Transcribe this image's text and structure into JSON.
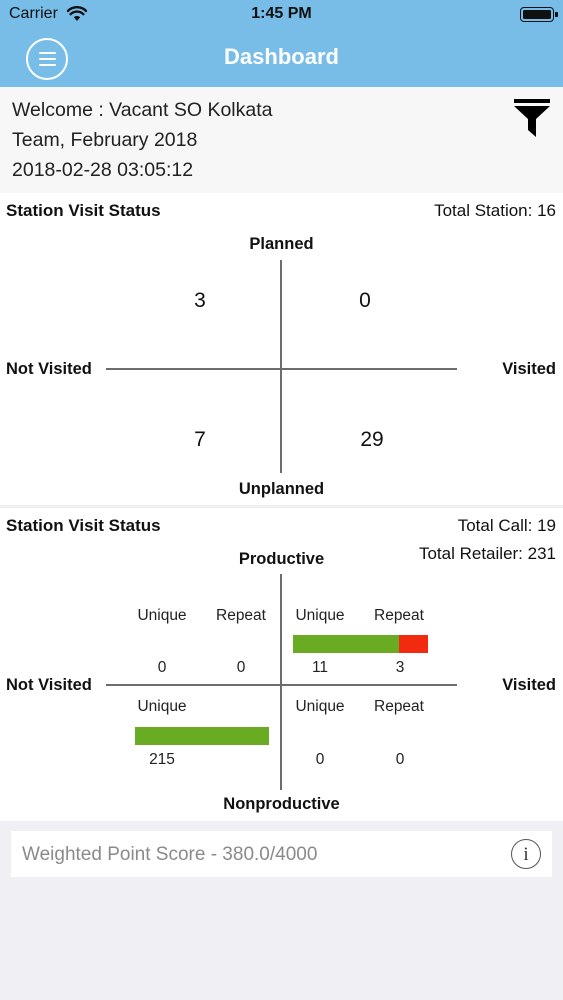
{
  "status_bar": {
    "carrier": "Carrier",
    "time": "1:45 PM"
  },
  "header": {
    "title": "Dashboard"
  },
  "welcome": {
    "line1": "Welcome : Vacant SO Kolkata",
    "line2": "Team, February 2018",
    "line3": "2018-02-28 03:05:12"
  },
  "station_status": {
    "title": "Station Visit Status",
    "total": "Total Station: 16",
    "top_label": "Planned",
    "bottom_label": "Unplanned",
    "left_label": "Not Visited",
    "right_label": "Visited",
    "planned_not_visited": "3",
    "planned_visited": "0",
    "unplanned_not_visited": "7",
    "unplanned_visited": "29"
  },
  "call_status": {
    "title": "Station Visit Status",
    "total_call": "Total Call: 19",
    "total_retailer": "Total Retailer: 231",
    "top_label": "Productive",
    "bottom_label": "Nonproductive",
    "left_label": "Not Visited",
    "right_label": "Visited",
    "productive_not_visited": {
      "unique_label": "Unique",
      "repeat_label": "Repeat",
      "unique": "0",
      "repeat": "0"
    },
    "productive_visited": {
      "unique_label": "Unique",
      "repeat_label": "Repeat",
      "unique": "11",
      "repeat": "3",
      "unique_share": 0.786,
      "repeat_share": 0.214
    },
    "nonproductive_not_visited": {
      "unique_label": "Unique",
      "unique": "215"
    },
    "nonproductive_visited": {
      "unique_label": "Unique",
      "repeat_label": "Repeat",
      "unique": "0",
      "repeat": "0"
    },
    "colors": {
      "unique": "#6aab24",
      "repeat": "#f22a0f"
    }
  },
  "score": {
    "label": "Weighted Point Score - 380.0/4000"
  },
  "colors": {
    "header": "#77bde7",
    "axis": "#6d6d6d"
  },
  "icons": {
    "menu": "menu-icon",
    "filter": "filter-icon",
    "info": "info-icon",
    "wifi": "wifi-icon",
    "battery": "battery-icon"
  }
}
